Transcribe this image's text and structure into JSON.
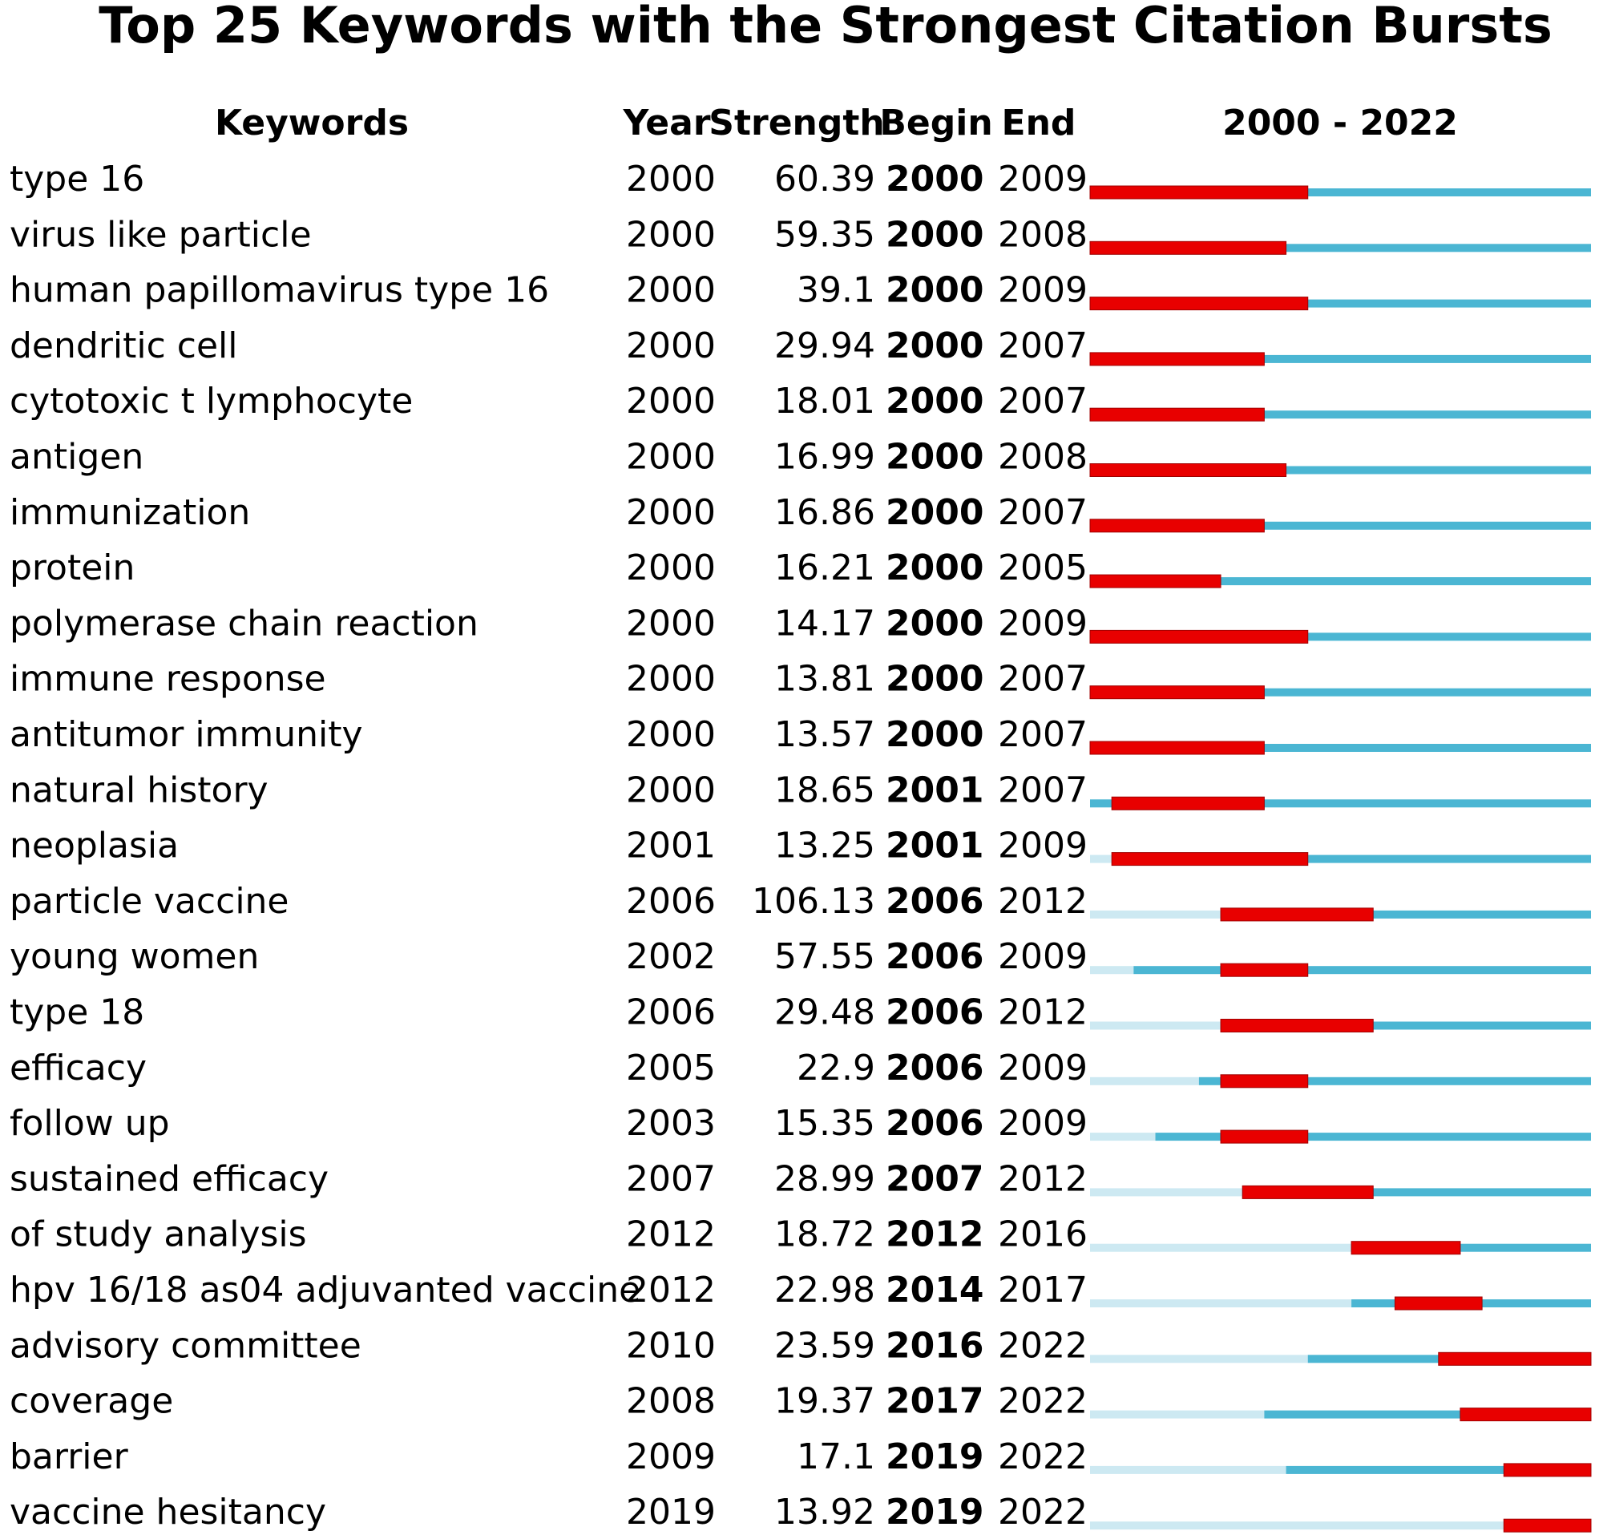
{
  "chart_data": {
    "type": "burst",
    "title": "Top 25 Keywords with the Strongest Citation Bursts",
    "columns": [
      "Keywords",
      "Year",
      "Strength",
      "Begin",
      "End"
    ],
    "timeline_label": "2000 - 2022",
    "xlim": [
      2000,
      2023
    ],
    "colors": {
      "before": "#cde9f2",
      "active": "#4bb6d3",
      "burst": "#e80000"
    },
    "rows": [
      {
        "keyword": "type 16",
        "year": 2000,
        "strength": 60.39,
        "begin": 2000,
        "end": 2009
      },
      {
        "keyword": "virus like particle",
        "year": 2000,
        "strength": 59.35,
        "begin": 2000,
        "end": 2008
      },
      {
        "keyword": "human papillomavirus type 16",
        "year": 2000,
        "strength": 39.1,
        "begin": 2000,
        "end": 2009
      },
      {
        "keyword": "dendritic cell",
        "year": 2000,
        "strength": 29.94,
        "begin": 2000,
        "end": 2007
      },
      {
        "keyword": "cytotoxic t lymphocyte",
        "year": 2000,
        "strength": 18.01,
        "begin": 2000,
        "end": 2007
      },
      {
        "keyword": "antigen",
        "year": 2000,
        "strength": 16.99,
        "begin": 2000,
        "end": 2008
      },
      {
        "keyword": "immunization",
        "year": 2000,
        "strength": 16.86,
        "begin": 2000,
        "end": 2007
      },
      {
        "keyword": "protein",
        "year": 2000,
        "strength": 16.21,
        "begin": 2000,
        "end": 2005
      },
      {
        "keyword": "polymerase chain reaction",
        "year": 2000,
        "strength": 14.17,
        "begin": 2000,
        "end": 2009
      },
      {
        "keyword": "immune response",
        "year": 2000,
        "strength": 13.81,
        "begin": 2000,
        "end": 2007
      },
      {
        "keyword": "antitumor immunity",
        "year": 2000,
        "strength": 13.57,
        "begin": 2000,
        "end": 2007
      },
      {
        "keyword": "natural history",
        "year": 2000,
        "strength": 18.65,
        "begin": 2001,
        "end": 2007
      },
      {
        "keyword": "neoplasia",
        "year": 2001,
        "strength": 13.25,
        "begin": 2001,
        "end": 2009
      },
      {
        "keyword": "particle vaccine",
        "year": 2006,
        "strength": 106.13,
        "begin": 2006,
        "end": 2012
      },
      {
        "keyword": "young women",
        "year": 2002,
        "strength": 57.55,
        "begin": 2006,
        "end": 2009
      },
      {
        "keyword": "type 18",
        "year": 2006,
        "strength": 29.48,
        "begin": 2006,
        "end": 2012
      },
      {
        "keyword": "efficacy",
        "year": 2005,
        "strength": 22.9,
        "begin": 2006,
        "end": 2009
      },
      {
        "keyword": "follow up",
        "year": 2003,
        "strength": 15.35,
        "begin": 2006,
        "end": 2009
      },
      {
        "keyword": "sustained efficacy",
        "year": 2007,
        "strength": 28.99,
        "begin": 2007,
        "end": 2012
      },
      {
        "keyword": "of study analysis",
        "year": 2012,
        "strength": 18.72,
        "begin": 2012,
        "end": 2016
      },
      {
        "keyword": "hpv 16/18 as04 adjuvanted vaccine",
        "year": 2012,
        "strength": 22.98,
        "begin": 2014,
        "end": 2017
      },
      {
        "keyword": "advisory committee",
        "year": 2010,
        "strength": 23.59,
        "begin": 2016,
        "end": 2022
      },
      {
        "keyword": "coverage",
        "year": 2008,
        "strength": 19.37,
        "begin": 2017,
        "end": 2022
      },
      {
        "keyword": "barrier",
        "year": 2009,
        "strength": 17.1,
        "begin": 2019,
        "end": 2022
      },
      {
        "keyword": "vaccine hesitancy",
        "year": 2019,
        "strength": 13.92,
        "begin": 2019,
        "end": 2022
      }
    ]
  }
}
